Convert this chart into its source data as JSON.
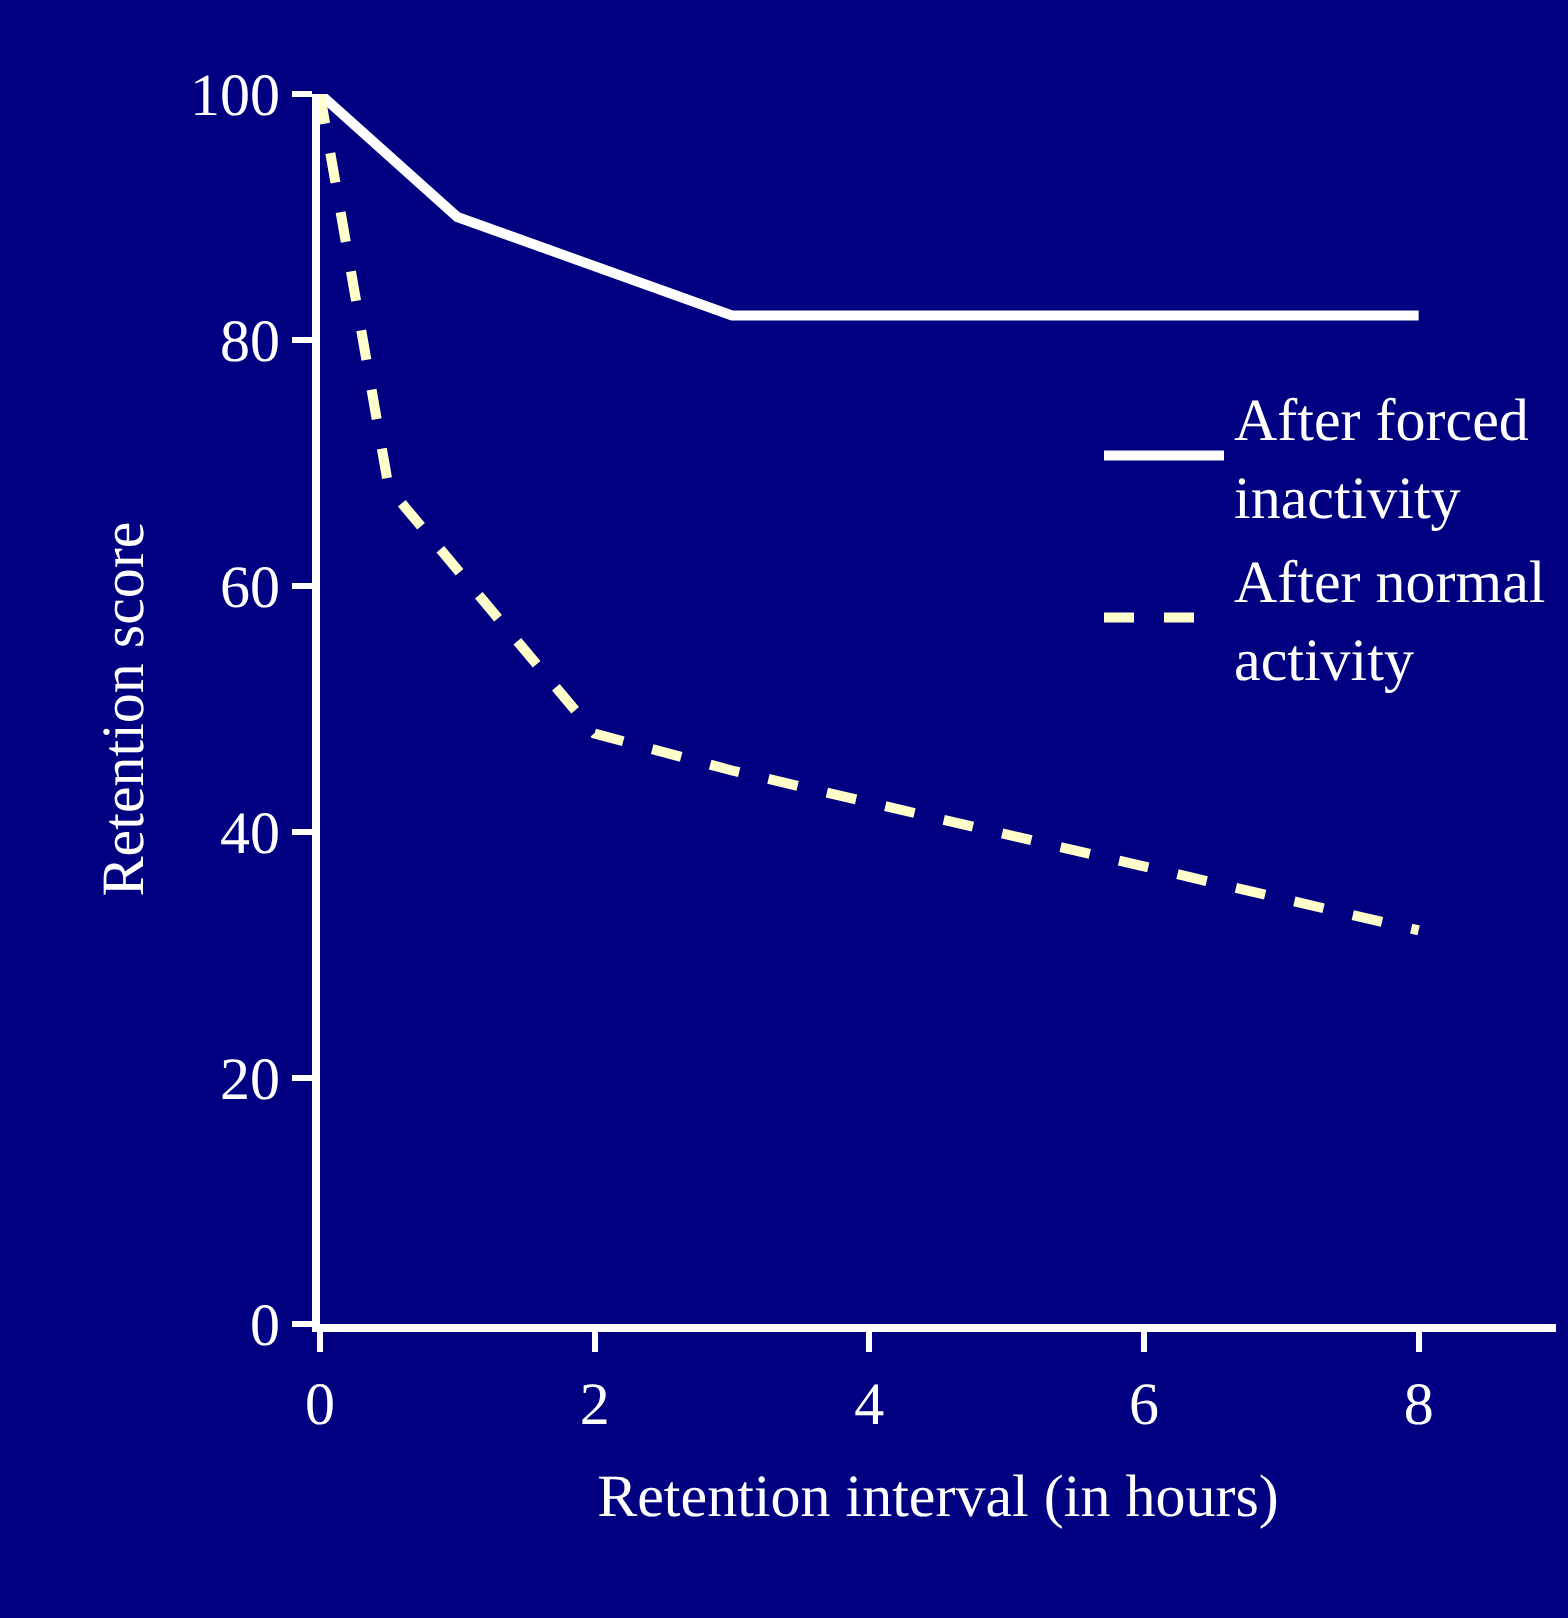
{
  "chart_data": {
    "type": "line",
    "xlabel": "Retention interval (in hours)",
    "ylabel": "Retention score",
    "xlim": [
      0,
      9
    ],
    "xticks": [
      0,
      2,
      4,
      6,
      8
    ],
    "ylim": [
      0,
      100
    ],
    "yticks": [
      0,
      20,
      40,
      60,
      80,
      100
    ],
    "grid": false,
    "legend": "top right",
    "marker": "none",
    "series": [
      {
        "name": "After forced inactivity",
        "color": "#ffffff",
        "line_style": "solid",
        "x": [
          0,
          1,
          3,
          8
        ],
        "values": [
          100,
          90,
          82,
          82
        ]
      },
      {
        "name": "After normal activity",
        "color": "#ffffcc",
        "line_style": "dashed",
        "x": [
          0,
          0.5,
          2,
          3,
          8
        ],
        "values": [
          100,
          68,
          48,
          45,
          32
        ]
      }
    ]
  }
}
